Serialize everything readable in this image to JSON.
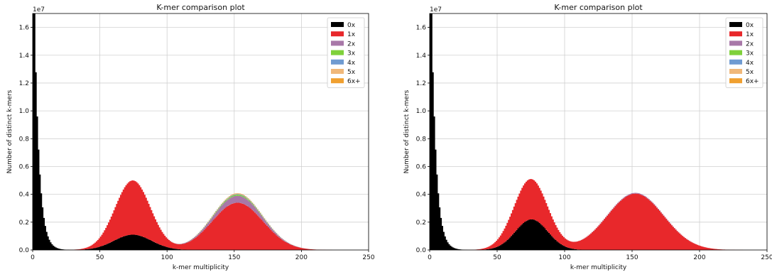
{
  "chart_data": [
    {
      "type": "area",
      "title": "K-mer comparison plot",
      "xlabel": "k-mer multiplicity",
      "ylabel": "Number of distinct k-mers",
      "y_scale_label": "1e7",
      "xlim": [
        0,
        250
      ],
      "ylim": [
        0,
        1.7
      ],
      "xticks": [
        "0",
        "50",
        "100",
        "150",
        "200",
        "250"
      ],
      "yticks": [
        "0.0",
        "0.2",
        "0.4",
        "0.6",
        "0.8",
        "1.0",
        "1.2",
        "1.4",
        "1.6"
      ],
      "grid": true,
      "legend_position": "top-right",
      "series": [
        {
          "name": "0x",
          "color": "#000000",
          "peaks": [
            {
              "center": 74,
              "height": 0.11,
              "width": 14
            }
          ],
          "error_peak": {
            "height": 1.7,
            "decay": 3.5
          }
        },
        {
          "name": "1x",
          "color": "#e8282b",
          "peaks": [
            {
              "center": 74,
              "height": 0.39,
              "width": 13
            },
            {
              "center": 152,
              "height": 0.34,
              "width": 19
            }
          ]
        },
        {
          "name": "2x",
          "color": "#a878a8",
          "peaks": [
            {
              "center": 152,
              "height": 0.05,
              "width": 17
            }
          ]
        },
        {
          "name": "3x",
          "color": "#7fd13b",
          "peaks": [
            {
              "center": 152,
              "height": 0.008,
              "width": 16
            }
          ]
        },
        {
          "name": "4x",
          "color": "#6f9bd1",
          "peaks": [
            {
              "center": 152,
              "height": 0.004,
              "width": 16
            }
          ]
        },
        {
          "name": "5x",
          "color": "#f0b87a",
          "peaks": [
            {
              "center": 152,
              "height": 0.003,
              "width": 16
            }
          ]
        },
        {
          "name": "6x+",
          "color": "#f0a030",
          "peaks": [
            {
              "center": 152,
              "height": 0.003,
              "width": 16
            }
          ]
        }
      ]
    },
    {
      "type": "area",
      "title": "K-mer comparison plot",
      "xlabel": "k-mer multiplicity",
      "ylabel": "Number of distinct k-mers",
      "y_scale_label": "1e7",
      "xlim": [
        0,
        250
      ],
      "ylim": [
        0,
        1.7
      ],
      "xticks": [
        "0",
        "50",
        "100",
        "150",
        "200",
        "250"
      ],
      "yticks": [
        "0.0",
        "0.2",
        "0.4",
        "0.6",
        "0.8",
        "1.0",
        "1.2",
        "1.4",
        "1.6"
      ],
      "grid": true,
      "legend_position": "top-right",
      "series": [
        {
          "name": "0x",
          "color": "#000000",
          "peaks": [
            {
              "center": 75,
              "height": 0.22,
              "width": 12
            }
          ],
          "error_peak": {
            "height": 1.7,
            "decay": 3.5
          }
        },
        {
          "name": "1x",
          "color": "#e8282b",
          "peaks": [
            {
              "center": 74,
              "height": 0.29,
              "width": 13
            },
            {
              "center": 152,
              "height": 0.405,
              "width": 21
            }
          ]
        },
        {
          "name": "2x",
          "color": "#a878a8",
          "peaks": [
            {
              "center": 152,
              "height": 0.006,
              "width": 20
            }
          ]
        },
        {
          "name": "3x",
          "color": "#7fd13b",
          "peaks": []
        },
        {
          "name": "4x",
          "color": "#6f9bd1",
          "peaks": []
        },
        {
          "name": "5x",
          "color": "#f0b87a",
          "peaks": []
        },
        {
          "name": "6x+",
          "color": "#f0a030",
          "peaks": []
        }
      ]
    }
  ]
}
